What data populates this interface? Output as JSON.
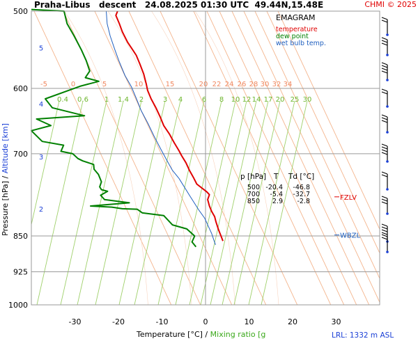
{
  "header": {
    "title": "Praha-Libus   descent   24.08.2025 01:30 UTC  49.44N,15.48E",
    "copyright": "CHMI © 2025"
  },
  "legend": {
    "title": "EMAGRAM",
    "items": [
      {
        "label": "temperature",
        "color": "#e00000"
      },
      {
        "label": "dew point",
        "color": "#008000"
      },
      {
        "label": "wet bulb temp.",
        "color": "#1f5fbf"
      }
    ]
  },
  "table": {
    "headers": [
      "p [hPa]",
      "T",
      "Td [°C]"
    ],
    "rows": [
      [
        "500",
        "-20.4",
        "-46.8"
      ],
      [
        "700",
        "-5.4",
        "-32.7"
      ],
      [
        "850",
        "2.9",
        "-2.8"
      ]
    ]
  },
  "markers": {
    "fzlv": "FZLV",
    "wbzl": "WBZL"
  },
  "lrl": "LRL: 1332 m ASL",
  "chart_data": {
    "type": "line",
    "xlabel": "Temperature [°C]  /  Mixing ratio [g/kg]",
    "ylabel": "Pressure [hPa]  /  Altitude [km]",
    "x_ticks": [
      -30,
      -20,
      -10,
      0,
      10,
      20,
      30
    ],
    "y_ticks": [
      500,
      600,
      700,
      850,
      925,
      1000
    ],
    "xlim": [
      -40,
      40
    ],
    "ylim": [
      1000,
      500
    ],
    "altitude_ticks": [
      {
        "km": "5",
        "p": 545
      },
      {
        "km": "4",
        "p": 622
      },
      {
        "km": "3",
        "p": 705
      },
      {
        "km": "2",
        "p": 797
      }
    ],
    "dry_adiabats": [
      -5,
      0,
      5,
      10,
      15,
      20,
      22,
      24,
      26,
      28,
      30,
      32,
      34
    ],
    "mixing_ratios": [
      "0.4",
      "0.6",
      "1",
      "1.4",
      "2",
      "3",
      "4",
      "6",
      "8",
      "10",
      "12",
      "14",
      "17",
      "20",
      "25",
      "30"
    ],
    "fzlv_p": 775,
    "wbzl_p": 848,
    "series": [
      {
        "name": "temperature",
        "color": "#e00000",
        "points": [
          [
            -20.2,
            500
          ],
          [
            -20.6,
            505
          ],
          [
            -19.8,
            515
          ],
          [
            -19.1,
            525
          ],
          [
            -17.9,
            538
          ],
          [
            -16.7,
            548
          ],
          [
            -15.9,
            555
          ],
          [
            -15.1,
            566
          ],
          [
            -14.2,
            580
          ],
          [
            -13.6,
            594
          ],
          [
            -13.3,
            603
          ],
          [
            -12.5,
            615
          ],
          [
            -11.4,
            628
          ],
          [
            -10.4,
            642
          ],
          [
            -9.6,
            655
          ],
          [
            -8.3,
            668
          ],
          [
            -7.2,
            682
          ],
          [
            -6.1,
            695
          ],
          [
            -5.5,
            703
          ],
          [
            -4.5,
            715
          ],
          [
            -3.7,
            728
          ],
          [
            -2.8,
            740
          ],
          [
            -2.0,
            752
          ],
          [
            0.3,
            766
          ],
          [
            0.9,
            771
          ],
          [
            0.5,
            780
          ],
          [
            0.9,
            792
          ],
          [
            1.4,
            802
          ],
          [
            2.1,
            812
          ],
          [
            2.4,
            822
          ],
          [
            3.0,
            838
          ],
          [
            3.6,
            851
          ],
          [
            4.0,
            860
          ]
        ]
      },
      {
        "name": "dew point",
        "color": "#008000",
        "points": [
          [
            -40,
            498
          ],
          [
            -32.5,
            500
          ],
          [
            -31.8,
            515
          ],
          [
            -30.2,
            530
          ],
          [
            -28.5,
            548
          ],
          [
            -27.4,
            562
          ],
          [
            -26.6,
            576
          ],
          [
            -27.6,
            585
          ],
          [
            -24.5,
            590
          ],
          [
            -28.8,
            597
          ],
          [
            -36.8,
            615
          ],
          [
            -35.2,
            628
          ],
          [
            -27.8,
            640
          ],
          [
            -38.8,
            645
          ],
          [
            -35.5,
            655
          ],
          [
            -40,
            663
          ],
          [
            -37.5,
            680
          ],
          [
            -32.6,
            686
          ],
          [
            -33.2,
            696
          ],
          [
            -30.5,
            700
          ],
          [
            -29.3,
            708
          ],
          [
            -28.2,
            712
          ],
          [
            -25.7,
            718
          ],
          [
            -25.6,
            726
          ],
          [
            -24.6,
            735
          ],
          [
            -23.9,
            748
          ],
          [
            -24.3,
            757
          ],
          [
            -23.9,
            762
          ],
          [
            -22.5,
            765
          ],
          [
            -24.1,
            772
          ],
          [
            -23.2,
            780
          ],
          [
            -17.5,
            786
          ],
          [
            -26.4,
            792
          ],
          [
            -21.5,
            794
          ],
          [
            -19.1,
            797
          ],
          [
            -15.7,
            798
          ],
          [
            -14.5,
            805
          ],
          [
            -9.6,
            810
          ],
          [
            -7.6,
            828
          ],
          [
            -4.3,
            836
          ],
          [
            -2.5,
            850
          ],
          [
            -3.1,
            862
          ],
          [
            -2.2,
            872
          ]
        ]
      },
      {
        "name": "wet bulb temp.",
        "color": "#1f5fbf",
        "points": [
          [
            -22.8,
            500
          ],
          [
            -22.6,
            515
          ],
          [
            -21.9,
            530
          ],
          [
            -20.8,
            548
          ],
          [
            -19.9,
            562
          ],
          [
            -18.5,
            582
          ],
          [
            -17.0,
            598
          ],
          [
            -15.8,
            616
          ],
          [
            -14.8,
            632
          ],
          [
            -13.2,
            652
          ],
          [
            -11.8,
            672
          ],
          [
            -10.3,
            692
          ],
          [
            -8.8,
            712
          ],
          [
            -7.6,
            728
          ],
          [
            -6.1,
            742
          ],
          [
            -4.8,
            758
          ],
          [
            -3.7,
            772
          ],
          [
            -2.6,
            786
          ],
          [
            -1.5,
            800
          ],
          [
            -0.2,
            815
          ],
          [
            0.6,
            830
          ],
          [
            1.4,
            845
          ],
          [
            1.9,
            858
          ],
          [
            2.3,
            868
          ]
        ]
      }
    ]
  }
}
